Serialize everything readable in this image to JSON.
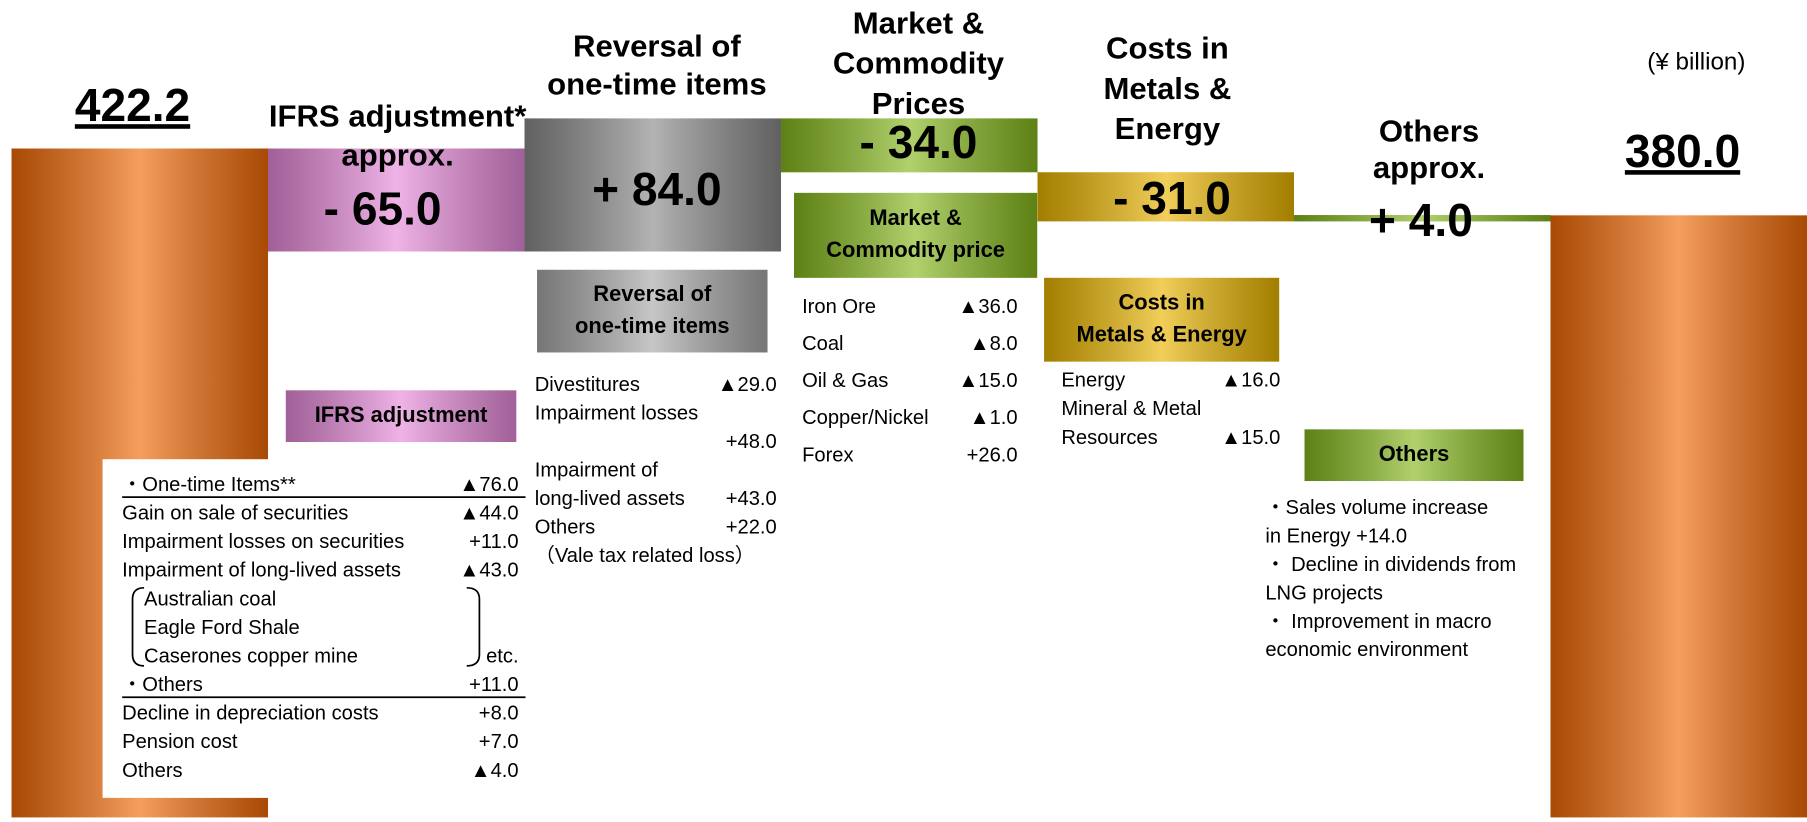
{
  "chart_data": {
    "type": "waterfall",
    "unit_note": "(¥ billion)",
    "categories": [
      null,
      [
        "IFRS adjustment*",
        "approx."
      ],
      [
        "Reversal of",
        "one-time items"
      ],
      [
        "Market &",
        "Commodity",
        "Prices"
      ],
      [
        "Costs in",
        "Metals &",
        "Energy"
      ],
      [
        "Others",
        "approx."
      ],
      null
    ],
    "values": [
      422.2,
      -65.0,
      84.0,
      -34.0,
      -31.0,
      4.0,
      380.0
    ],
    "value_labels": [
      "422.2",
      "- 65.0",
      "+ 84.0",
      "- 34.0",
      "- 31.0",
      "+ 4.0",
      "380.0"
    ],
    "is_total": [
      true,
      false,
      false,
      false,
      false,
      false,
      true
    ],
    "colors": [
      "#f06a08",
      "#e68ad9",
      "#8a8a8a",
      "#86b81e",
      "#e8b400",
      "#86b81e",
      "#f06a08"
    ],
    "ylim": [
      0,
      450
    ]
  },
  "panels": [
    {
      "title": [
        "IFRS adjustment"
      ],
      "color": "#e68ad9",
      "items": [
        {
          "label": "・One-time Items**",
          "amount": "▲76.0"
        },
        {
          "label": "Gain on sale of securities",
          "amount": "▲44.0"
        },
        {
          "label": "Impairment losses  on securities",
          "amount": "+11.0"
        },
        {
          "label": "Impairment of long-lived assets",
          "amount": "▲43.0"
        },
        {
          "label": "Australian coal"
        },
        {
          "label": "Eagle Ford Shale"
        },
        {
          "label": "Caserones copper mine",
          "amount": "etc."
        },
        {
          "label": "・Others",
          "amount": "+11.0"
        },
        {
          "label": "Decline in depreciation costs",
          "amount": "+8.0"
        },
        {
          "label": "Pension cost",
          "amount": "+7.0"
        },
        {
          "label": "Others",
          "amount": "▲4.0"
        }
      ]
    },
    {
      "title": [
        "Reversal of",
        "one-time items"
      ],
      "color": "#a8a8a8",
      "items": [
        {
          "label": "Divestitures",
          "amount": "▲29.0"
        },
        {
          "label": "Impairment losses"
        },
        {
          "amount": "+48.0"
        },
        {
          "label": "Impairment of"
        },
        {
          "label": " long-lived assets",
          "amount": "+43.0"
        },
        {
          "label": "Others",
          "amount": "+22.0"
        },
        {
          "label": "（Vale tax related loss）"
        }
      ]
    },
    {
      "title": [
        "Market &",
        "Commodity price"
      ],
      "color": "#86b81e",
      "items": [
        {
          "label": "Iron Ore",
          "amount": "▲36.0"
        },
        {
          "label": "Coal",
          "amount": "▲8.0"
        },
        {
          "label": "Oil & Gas",
          "amount": "▲15.0"
        },
        {
          "label": "Copper/Nickel",
          "amount": "▲1.0"
        },
        {
          "label": "Forex",
          "amount": "+26.0"
        }
      ]
    },
    {
      "title": [
        "Costs in",
        "Metals & Energy"
      ],
      "color": "#e8b400",
      "items": [
        {
          "label": "Energy",
          "amount": "▲16.0"
        },
        {
          "label": "Mineral & Metal"
        },
        {
          "label": "Resources",
          "amount": "▲15.0"
        }
      ]
    },
    {
      "title": [
        "Others"
      ],
      "color": "#86b81e",
      "items": [
        {
          "label": "・Sales volume increase"
        },
        {
          "label": "  in  Energy  +14.0"
        },
        {
          "label": "・ Decline in dividends from"
        },
        {
          "label": "    LNG projects"
        },
        {
          "label": "・ Improvement in macro"
        },
        {
          "label": "    economic environment"
        }
      ]
    }
  ]
}
